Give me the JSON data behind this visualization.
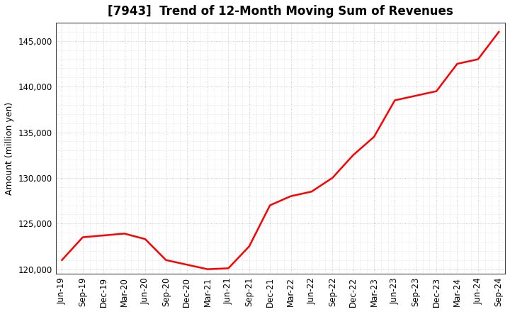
{
  "title": "[7943]  Trend of 12-Month Moving Sum of Revenues",
  "ylabel": "Amount (million yen)",
  "line_color": "#ff0000",
  "background_color": "#ffffff",
  "plot_bg_color": "#ffffff",
  "grid_color": "#bbbbbb",
  "ylim": [
    119500,
    147000
  ],
  "yticks": [
    120000,
    125000,
    130000,
    135000,
    140000,
    145000
  ],
  "x_labels": [
    "Jun-19",
    "Sep-19",
    "Dec-19",
    "Mar-20",
    "Jun-20",
    "Sep-20",
    "Dec-20",
    "Mar-21",
    "Jun-21",
    "Sep-21",
    "Dec-21",
    "Mar-22",
    "Jun-22",
    "Sep-22",
    "Dec-22",
    "Mar-23",
    "Jun-23",
    "Sep-23",
    "Dec-23",
    "Mar-24",
    "Jun-24",
    "Sep-24"
  ],
  "values": [
    121000,
    123500,
    123700,
    123900,
    123300,
    121000,
    120500,
    120000,
    120100,
    122500,
    127000,
    128000,
    128500,
    130000,
    132500,
    134500,
    138500,
    139000,
    139500,
    142500,
    143000,
    146000
  ],
  "title_fontsize": 12,
  "ylabel_fontsize": 9,
  "tick_fontsize": 8.5,
  "line_width": 1.8
}
